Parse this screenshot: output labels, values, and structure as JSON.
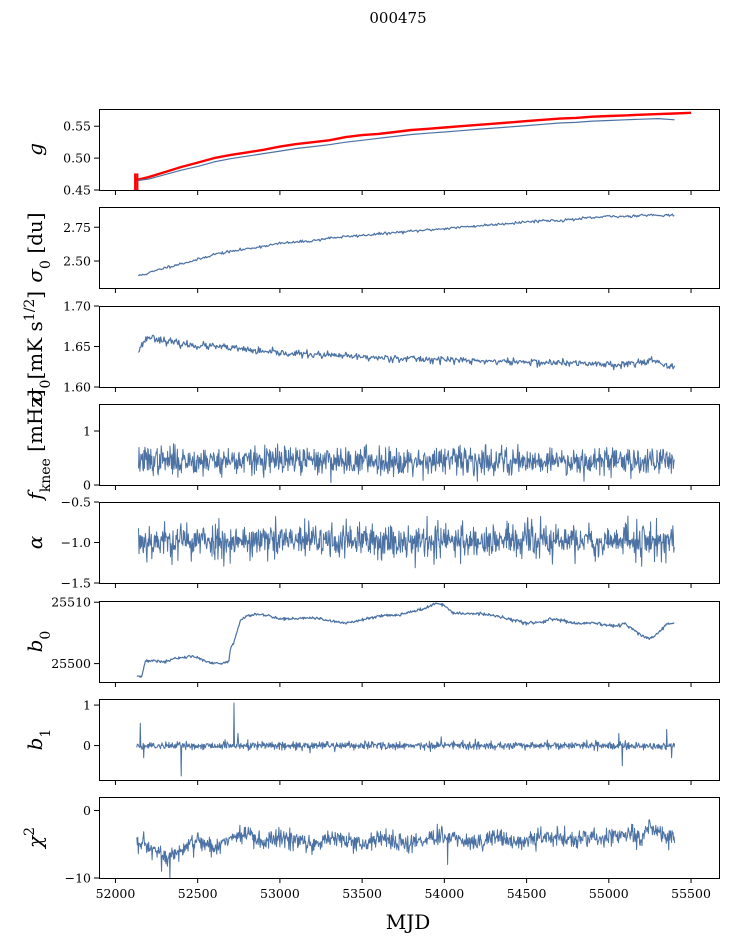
{
  "figure": {
    "title": "000475",
    "xlabel": "MJD",
    "colors": {
      "series": "#4c72a4",
      "highlight": "#ff0000"
    }
  },
  "chart_data": [
    {
      "type": "line",
      "ylabel": "g",
      "ylabel_html": "<tspan font-style='italic'>g</tspan>",
      "xlim": [
        51900,
        55670
      ],
      "ylim": [
        0.45,
        0.577
      ],
      "yticks": [
        0.45,
        0.5,
        0.55
      ],
      "ytick_labels": [
        "0.45",
        "0.50",
        "0.55"
      ],
      "xtick_labels_shown": false,
      "series": [
        {
          "color": "#ff0000",
          "width": 2.4,
          "x": [
            52120,
            52150,
            52200,
            52300,
            52400,
            52500,
            52600,
            52700,
            52800,
            52900,
            53000,
            53100,
            53200,
            53300,
            53400,
            53500,
            53600,
            53700,
            53800,
            53900,
            54000,
            54100,
            54200,
            54300,
            54400,
            54500,
            54600,
            54700,
            54800,
            54900,
            55000,
            55100,
            55200,
            55300,
            55400,
            55500
          ],
          "y": [
            0.466,
            0.467,
            0.47,
            0.478,
            0.486,
            0.493,
            0.5,
            0.505,
            0.509,
            0.513,
            0.518,
            0.522,
            0.525,
            0.528,
            0.533,
            0.536,
            0.538,
            0.541,
            0.544,
            0.546,
            0.548,
            0.55,
            0.552,
            0.554,
            0.556,
            0.558,
            0.56,
            0.562,
            0.563,
            0.565,
            0.566,
            0.567,
            0.568,
            0.569,
            0.57,
            0.571
          ]
        },
        {
          "color": "#4c72a4",
          "width": 1.2,
          "x": [
            52140,
            52200,
            52300,
            52400,
            52500,
            52600,
            52700,
            52800,
            52900,
            53000,
            53100,
            53200,
            53300,
            53400,
            53500,
            53600,
            53700,
            53800,
            53900,
            54000,
            54100,
            54200,
            54300,
            54400,
            54500,
            54600,
            54700,
            54800,
            54900,
            55000,
            55100,
            55200,
            55300,
            55400
          ],
          "y": [
            0.465,
            0.467,
            0.474,
            0.481,
            0.487,
            0.494,
            0.499,
            0.503,
            0.507,
            0.511,
            0.515,
            0.518,
            0.521,
            0.525,
            0.528,
            0.531,
            0.534,
            0.537,
            0.539,
            0.541,
            0.543,
            0.545,
            0.547,
            0.549,
            0.551,
            0.553,
            0.555,
            0.556,
            0.558,
            0.559,
            0.56,
            0.561,
            0.562,
            0.56
          ]
        }
      ]
    },
    {
      "type": "line",
      "ylabel": "σ0 [du]",
      "ylabel_html": "<tspan font-style='italic'>σ</tspan><tspan baseline-shift='sub' font-size='14'>0</tspan> [du]",
      "xlim": [
        51900,
        55670
      ],
      "ylim": [
        2.3,
        2.9
      ],
      "yticks": [
        2.5,
        2.75
      ],
      "ytick_labels": [
        "2.50",
        "2.75"
      ],
      "xtick_labels_shown": false,
      "series": [
        {
          "color": "#4c72a4",
          "width": 1.2,
          "x": [
            52140,
            52200,
            52300,
            52400,
            52500,
            52600,
            52700,
            52800,
            52900,
            53000,
            53100,
            53200,
            53300,
            53400,
            53500,
            53600,
            53700,
            53800,
            53900,
            54000,
            54100,
            54200,
            54300,
            54400,
            54500,
            54600,
            54700,
            54800,
            54900,
            55000,
            55100,
            55200,
            55300,
            55400
          ],
          "y": [
            2.39,
            2.41,
            2.45,
            2.48,
            2.51,
            2.55,
            2.57,
            2.59,
            2.61,
            2.63,
            2.64,
            2.65,
            2.67,
            2.68,
            2.69,
            2.7,
            2.71,
            2.72,
            2.73,
            2.74,
            2.75,
            2.76,
            2.77,
            2.78,
            2.79,
            2.8,
            2.8,
            2.81,
            2.82,
            2.83,
            2.83,
            2.84,
            2.84,
            2.84
          ],
          "noise": 0.005,
          "seed": 11,
          "step": 6
        }
      ]
    },
    {
      "type": "line",
      "ylabel": "σ0[mK s1/2]",
      "ylabel_html": "<tspan font-style='italic'>σ</tspan><tspan baseline-shift='sub' font-size='14'>0</tspan>[mK s<tspan baseline-shift='super' font-size='14'>1/2</tspan>]",
      "xlim": [
        51900,
        55670
      ],
      "ylim": [
        1.6,
        1.7
      ],
      "yticks": [
        1.6,
        1.65,
        1.7
      ],
      "ytick_labels": [
        "1.60",
        "1.65",
        "1.70"
      ],
      "xtick_labels_shown": false,
      "series": [
        {
          "color": "#4c72a4",
          "width": 1.2,
          "x": [
            52140,
            52170,
            52200,
            52250,
            52300,
            52400,
            52500,
            52600,
            52700,
            52800,
            52900,
            53000,
            53100,
            53200,
            53300,
            53400,
            53500,
            53600,
            53700,
            53800,
            53900,
            54000,
            54100,
            54200,
            54300,
            54400,
            54500,
            54600,
            54700,
            54800,
            54900,
            55000,
            55100,
            55200,
            55250,
            55300,
            55350,
            55400
          ],
          "y": [
            1.645,
            1.655,
            1.662,
            1.66,
            1.657,
            1.653,
            1.651,
            1.65,
            1.648,
            1.646,
            1.643,
            1.642,
            1.641,
            1.64,
            1.639,
            1.638,
            1.637,
            1.636,
            1.636,
            1.635,
            1.634,
            1.634,
            1.633,
            1.632,
            1.632,
            1.631,
            1.631,
            1.63,
            1.63,
            1.629,
            1.629,
            1.628,
            1.628,
            1.631,
            1.634,
            1.63,
            1.624,
            1.625
          ],
          "noise": 0.0022,
          "seed": 23,
          "step": 5
        }
      ]
    },
    {
      "type": "line",
      "ylabel": "fknee [mHz]",
      "ylabel_html": "<tspan font-style='italic'>f</tspan><tspan baseline-shift='sub' font-size='14'>knee</tspan> [mHz]",
      "xlim": [
        51900,
        55670
      ],
      "ylim": [
        0,
        1.5
      ],
      "yticks": [
        0,
        1
      ],
      "ytick_labels": [
        "0",
        "1"
      ],
      "xtick_labels_shown": false,
      "series": [
        {
          "color": "#4c72a4",
          "width": 1.0,
          "x": [
            52140,
            55400
          ],
          "y": [
            0.45,
            0.45
          ],
          "noise": 0.13,
          "seed": 37,
          "step": 3
        }
      ]
    },
    {
      "type": "line",
      "ylabel": "α",
      "ylabel_html": "<tspan font-style='italic'>α</tspan>",
      "xlim": [
        51900,
        55670
      ],
      "ylim": [
        -1.5,
        -0.5
      ],
      "yticks": [
        -1.5,
        -1.0,
        -0.5
      ],
      "ytick_labels": [
        "−1.5",
        "−1.0",
        "−0.5"
      ],
      "xtick_labels_shown": false,
      "series": [
        {
          "color": "#4c72a4",
          "width": 1.0,
          "x": [
            52140,
            55400
          ],
          "y": [
            -0.98,
            -0.98
          ],
          "noise": 0.11,
          "seed": 53,
          "step": 3
        }
      ]
    },
    {
      "type": "line",
      "ylabel": "b0",
      "ylabel_html": "<tspan font-style='italic'>b</tspan><tspan baseline-shift='sub' font-size='14'>0</tspan>",
      "xlim": [
        51900,
        55670
      ],
      "ylim": [
        25497,
        25510.2
      ],
      "yticks": [
        25500,
        25510
      ],
      "ytick_labels": [
        "25500",
        "25510"
      ],
      "xtick_labels_shown": false,
      "series": [
        {
          "color": "#4c72a4",
          "width": 1.2,
          "x": [
            52130,
            52160,
            52180,
            52200,
            52250,
            52300,
            52350,
            52400,
            52450,
            52500,
            52550,
            52600,
            52650,
            52690,
            52700,
            52720,
            52740,
            52760,
            52800,
            52850,
            52900,
            52950,
            53000,
            53100,
            53200,
            53300,
            53400,
            53500,
            53600,
            53700,
            53800,
            53900,
            53950,
            54000,
            54050,
            54100,
            54200,
            54300,
            54400,
            54500,
            54600,
            54650,
            54700,
            54800,
            54900,
            55000,
            55050,
            55100,
            55120,
            55150,
            55200,
            55250,
            55300,
            55350,
            55400
          ],
          "y": [
            25498.0,
            25498.0,
            25500.3,
            25500.4,
            25500.5,
            25500.2,
            25500.8,
            25500.9,
            25501.2,
            25501.0,
            25500.3,
            25500.0,
            25500.0,
            25500.4,
            25502.6,
            25503.4,
            25505.3,
            25507.0,
            25507.8,
            25508.1,
            25507.9,
            25507.7,
            25507.3,
            25507.3,
            25507.5,
            25507.0,
            25506.6,
            25507.1,
            25507.8,
            25507.9,
            25508.4,
            25509.2,
            25509.8,
            25509.5,
            25508.3,
            25508.1,
            25508.2,
            25507.8,
            25507.2,
            25506.6,
            25506.8,
            25507.3,
            25507.1,
            25506.5,
            25506.6,
            25506.2,
            25506.1,
            25506.6,
            25505.9,
            25505.6,
            25504.5,
            25504.0,
            25505.0,
            25506.4,
            25506.6
          ],
          "noise": 0.12,
          "seed": 71,
          "step": 4
        }
      ]
    },
    {
      "type": "line",
      "ylabel": "b1",
      "ylabel_html": "<tspan font-style='italic'>b</tspan><tspan baseline-shift='sub' font-size='14'>1</tspan>",
      "xlim": [
        51900,
        55670
      ],
      "ylim": [
        -0.85,
        1.15
      ],
      "yticks": [
        0,
        1
      ],
      "ytick_labels": [
        "0",
        "1"
      ],
      "xtick_labels_shown": false,
      "series": [
        {
          "color": "#4c72a4",
          "width": 1.0,
          "x": [
            52130,
            55400
          ],
          "y": [
            0.0,
            0.0
          ],
          "noise": 0.05,
          "seed": 89,
          "step": 3,
          "spikes": [
            {
              "x": 52150,
              "y": 0.55
            },
            {
              "x": 52170,
              "y": -0.3
            },
            {
              "x": 52400,
              "y": -0.75
            },
            {
              "x": 52720,
              "y": 1.05
            },
            {
              "x": 52745,
              "y": 0.3
            },
            {
              "x": 53980,
              "y": 0.22
            },
            {
              "x": 55080,
              "y": -0.5
            },
            {
              "x": 55060,
              "y": 0.3
            },
            {
              "x": 55350,
              "y": 0.4
            },
            {
              "x": 55380,
              "y": -0.3
            }
          ]
        }
      ]
    },
    {
      "type": "line",
      "ylabel": "χ2",
      "ylabel_html": "<tspan font-style='italic'>χ</tspan><tspan baseline-shift='super' font-size='14'>2</tspan>",
      "xlim": [
        51900,
        55670
      ],
      "ylim": [
        -10,
        2
      ],
      "yticks": [
        -10,
        0
      ],
      "ytick_labels": [
        "−10",
        "0"
      ],
      "xtick_labels_shown": true,
      "xticks": [
        52000,
        52500,
        53000,
        53500,
        54000,
        54500,
        55000,
        55500
      ],
      "xtick_labels": [
        "52000",
        "52500",
        "53000",
        "53500",
        "54000",
        "54500",
        "55000",
        "55500"
      ],
      "series": [
        {
          "color": "#4c72a4",
          "width": 1.0,
          "x": [
            52130,
            52200,
            52300,
            52400,
            52500,
            52600,
            52700,
            52800,
            52900,
            53000,
            53100,
            53200,
            53300,
            53400,
            53500,
            53600,
            53700,
            53800,
            53900,
            54000,
            54100,
            54200,
            54300,
            54400,
            54500,
            54600,
            54700,
            54800,
            54900,
            55000,
            55100,
            55200,
            55250,
            55300,
            55400
          ],
          "y": [
            -5.0,
            -5.5,
            -7.0,
            -6.0,
            -4.5,
            -5.5,
            -4.0,
            -3.5,
            -5.0,
            -4.0,
            -4.5,
            -5.0,
            -4.0,
            -4.5,
            -5.0,
            -4.0,
            -4.5,
            -5.0,
            -4.0,
            -4.0,
            -4.5,
            -4.5,
            -4.0,
            -4.5,
            -4.5,
            -4.0,
            -4.0,
            -4.5,
            -4.0,
            -4.0,
            -3.5,
            -4.0,
            -2.0,
            -3.5,
            -4.0
          ],
          "noise": 0.7,
          "seed": 97,
          "step": 3,
          "spikes": [
            {
              "x": 52330,
              "y": -10
            },
            {
              "x": 52280,
              "y": -9
            },
            {
              "x": 54020,
              "y": -8
            }
          ]
        }
      ]
    }
  ]
}
